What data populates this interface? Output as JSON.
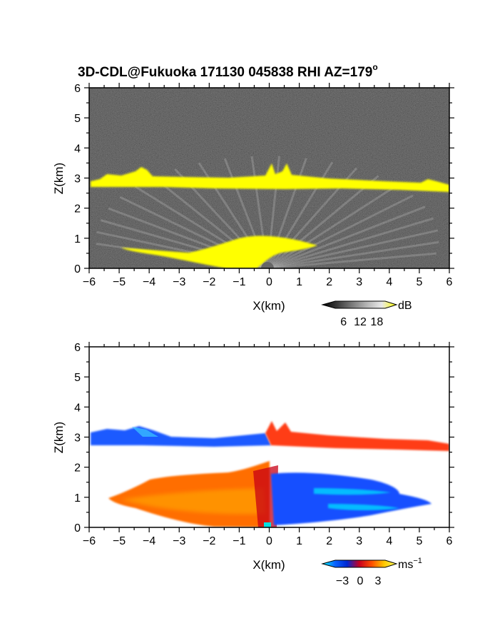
{
  "chart_data": [
    {
      "type": "heatmap",
      "title_main": "3D-CDL@Fukuoka 171130 045838 RHI AZ=179",
      "title_sup": "o",
      "xlabel": "X(km)",
      "ylabel": "Z(km)",
      "xlim": [
        -6,
        6
      ],
      "ylim": [
        0,
        6
      ],
      "xticks": [
        -6,
        -5,
        -4,
        -3,
        -2,
        -1,
        0,
        1,
        2,
        3,
        4,
        5,
        6
      ],
      "yticks": [
        0,
        1,
        2,
        3,
        4,
        5,
        6
      ],
      "colorbar": {
        "unit": "dB",
        "ticks": [
          6,
          12,
          18
        ],
        "colors": [
          "#000000",
          "#3a3a3a",
          "#7a7a7a",
          "#b5b5b5",
          "#e8e8e8",
          "#ffff00"
        ]
      },
      "layers": [
        {
          "feature": "cloud-base layer",
          "x_range": [
            -6,
            6
          ],
          "z_base_left": 2.85,
          "z_base_right": 2.65,
          "color": "#ffff00"
        },
        {
          "feature": "boundary-layer aerosol",
          "x_range": [
            -5.7,
            5.7
          ],
          "z_range": [
            0,
            2.0
          ],
          "color": "#d0d0d0"
        },
        {
          "feature": "near-field saturation",
          "x_range": [
            -3.5,
            1.6
          ],
          "z_range": [
            0,
            1.05
          ],
          "color": "#ffff00"
        }
      ]
    },
    {
      "type": "heatmap",
      "xlabel": "X(km)",
      "ylabel": "Z(km)",
      "xlim": [
        -6,
        6
      ],
      "ylim": [
        0,
        6
      ],
      "xticks": [
        -6,
        -5,
        -4,
        -3,
        -2,
        -1,
        0,
        1,
        2,
        3,
        4,
        5,
        6
      ],
      "yticks": [
        0,
        1,
        2,
        3,
        4,
        5,
        6
      ],
      "colorbar": {
        "unit": "ms",
        "unit_sup": "−1",
        "ticks": [
          -3,
          0,
          3
        ],
        "tick_labels": [
          "−3",
          "0",
          "3"
        ],
        "colors": [
          "#00ffff",
          "#0a64ff",
          "#0028d2",
          "#c8001e",
          "#ff5000",
          "#ffc800",
          "#ffff64"
        ]
      },
      "layers": [
        {
          "feature": "cloud-base layer, approaching",
          "x_range": [
            -6,
            0
          ],
          "z_base": 2.85,
          "color": "#1e5aff"
        },
        {
          "feature": "cloud-base layer, receding",
          "x_range": [
            0,
            6
          ],
          "z_base": 2.7,
          "color": "#ff3c14"
        },
        {
          "feature": "boundary layer, positive velocity",
          "x_range": [
            -5.7,
            0
          ],
          "z_range": [
            0,
            1.6
          ],
          "color": "#ff6e00"
        },
        {
          "feature": "boundary layer, negative velocity",
          "x_range": [
            0,
            5.7
          ],
          "z_range": [
            0,
            1.2
          ],
          "color": "#1450ff"
        }
      ]
    }
  ]
}
